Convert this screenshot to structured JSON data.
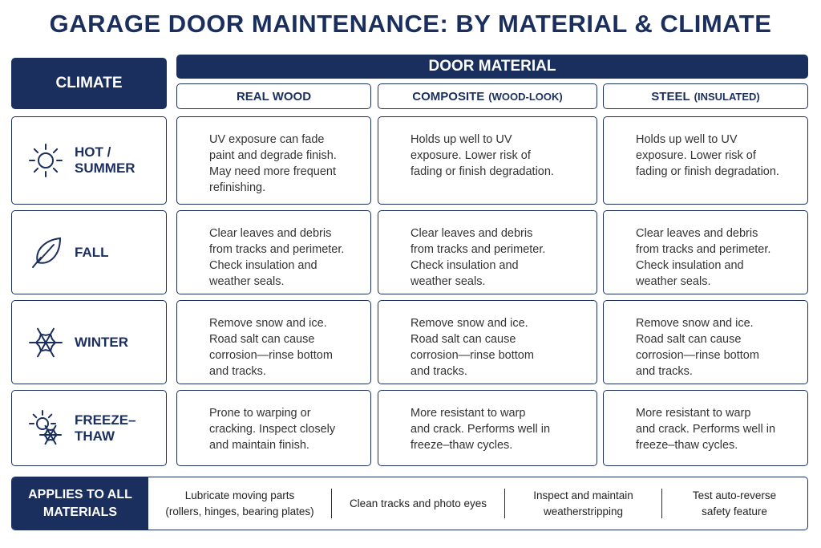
{
  "title": "GARAGE DOOR MAINTENANCE: BY MATERIAL & CLIMATE",
  "climate_header": "CLIMATE",
  "material_header": "DOOR MATERIAL",
  "columns": [
    {
      "name": "REAL WOOD"
    },
    {
      "name": "COMPOSITE",
      "note": "(WOOD-LOOK)"
    },
    {
      "name": "STEEL",
      "note": "(INSULATED)"
    }
  ],
  "rows": [
    {
      "climate": "HOT / SUMMER",
      "cells": [
        [
          "UV exposure can fade",
          "paint and degrade finish.",
          "May need more frequent",
          "refinishing."
        ],
        [
          "Holds up well to UV",
          "exposure. Lower risk of",
          "fading or finish degradation."
        ],
        [
          "Holds up well to UV",
          "exposure. Lower risk of",
          "fading or finish degradation."
        ]
      ]
    },
    {
      "climate": "FALL",
      "cells": [
        [
          "Clear leaves and debris",
          "from tracks and perimeter.",
          "Check insulation and",
          "weather seals."
        ],
        [
          "Clear leaves and debris",
          "from tracks and perimeter.",
          "Check insulation and",
          "weather seals."
        ],
        [
          "Clear leaves and debris",
          "from tracks and perimeter.",
          "Check insulation and",
          "weather seals."
        ]
      ]
    },
    {
      "climate": "WINTER",
      "cells": [
        [
          "Remove snow and ice.",
          "Road salt can cause",
          "corrosion—rinse bottom",
          "and tracks."
        ],
        [
          "Remove snow and ice.",
          "Road salt can cause",
          "corrosion—rinse bottom",
          "and tracks."
        ],
        [
          "Remove snow and ice.",
          "Road salt can cause",
          "corrosion—rinse bottom",
          "and tracks."
        ]
      ]
    },
    {
      "climate": "FREEZE–THAW",
      "cells": [
        [
          "Prone to warping or",
          "cracking. Inspect closely",
          "and maintain finish."
        ],
        [
          "More resistant to warp",
          "and crack. Performs well in",
          "freeze–thaw cycles."
        ],
        [
          "More resistant to warp",
          "and crack. Performs well in",
          "freeze–thaw cycles."
        ]
      ]
    }
  ],
  "footer": {
    "label": [
      "APPLIES TO ALL",
      "MATERIALS"
    ],
    "items": [
      [
        "Lubricate moving parts",
        "(rollers, hinges, bearing plates)"
      ],
      [
        "Clean tracks and photo eyes"
      ],
      [
        "Inspect and maintain",
        "weatherstripping"
      ],
      [
        "Test auto-reverse",
        "safety feature"
      ]
    ]
  }
}
